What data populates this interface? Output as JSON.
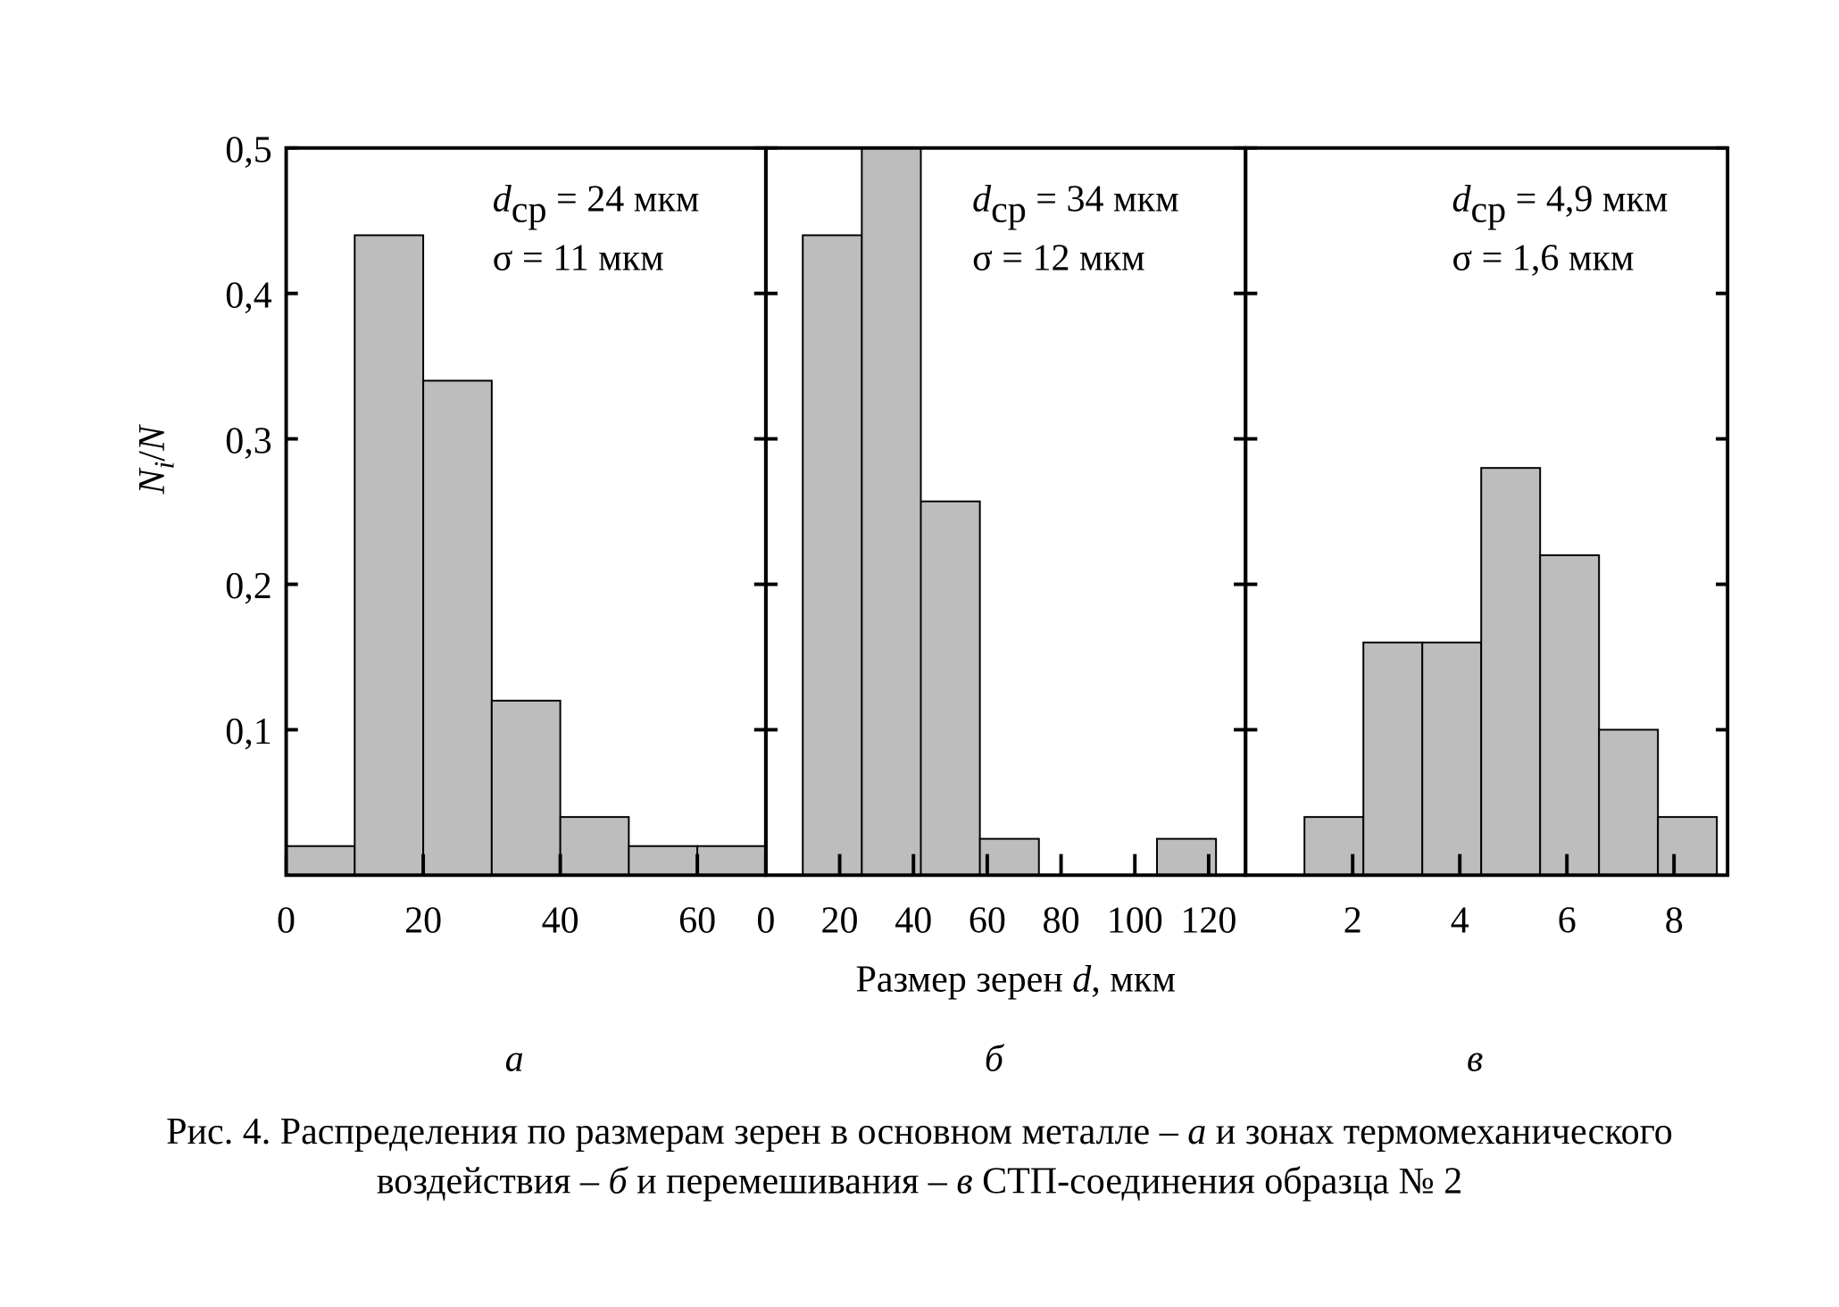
{
  "figure": {
    "ylabel": [
      "N",
      "i",
      "/",
      "N"
    ],
    "xlabel": [
      "Размер зерен ",
      "d",
      ", мкм"
    ],
    "caption": [
      [
        "Рис. 4. Распределения по размерам зерен в основном металле – ",
        "а",
        " и зонах термомеханического"
      ],
      [
        "воздействия – ",
        "б",
        " и перемешивания – ",
        "в",
        " СТП-соединения образца № 2"
      ]
    ]
  },
  "chart_data": [
    {
      "type": "histogram",
      "panel_label": "а",
      "annotation": {
        "symbol": "d",
        "subscript": "ср",
        "text": " = 24 мкм",
        "sigma": "σ = 11 мкм"
      },
      "bins": [
        0,
        10,
        20,
        30,
        40,
        50,
        60,
        70
      ],
      "values": [
        0.02,
        0.44,
        0.34,
        0.12,
        0.04,
        0.02,
        0.02
      ],
      "color": "#bdbdbd",
      "xlim": [
        0,
        70
      ],
      "xticks": [
        0,
        20,
        40,
        60
      ],
      "ylim": [
        0,
        0.5
      ],
      "yticks": [
        {
          "value": 0.1,
          "label": "0,1"
        },
        {
          "value": 0.2,
          "label": "0,2"
        },
        {
          "value": 0.3,
          "label": "0,3"
        },
        {
          "value": 0.4,
          "label": "0,4"
        },
        {
          "value": 0.5,
          "label": "0,5"
        }
      ]
    },
    {
      "type": "histogram",
      "panel_label": "б",
      "annotation": {
        "symbol": "d",
        "subscript": "ср",
        "text": " = 34 мкм",
        "sigma": "σ = 12 мкм"
      },
      "bins": [
        10,
        26,
        42,
        58,
        74,
        90,
        106,
        122
      ],
      "values": [
        0.44,
        0.5,
        0.257,
        0.025,
        0,
        0,
        0.025
      ],
      "color": "#bdbdbd",
      "xlim": [
        0,
        130
      ],
      "xticks": [
        0,
        20,
        40,
        60,
        80,
        100,
        120
      ],
      "ylim": [
        0,
        0.5
      ]
    },
    {
      "type": "histogram",
      "panel_label": "в",
      "annotation": {
        "symbol": "d",
        "subscript": "ср",
        "text": " = 4,9 мкм",
        "sigma": "σ = 1,6 мкм"
      },
      "bins": [
        1.1,
        2.2,
        3.3,
        4.4,
        5.5,
        6.6,
        7.7,
        8.8
      ],
      "values": [
        0.04,
        0.16,
        0.16,
        0.28,
        0.22,
        0.1,
        0.04
      ],
      "color": "#bdbdbd",
      "xlim": [
        0,
        9
      ],
      "xticks": [
        2,
        4,
        6,
        8
      ],
      "ylim": [
        0,
        0.5
      ]
    }
  ]
}
